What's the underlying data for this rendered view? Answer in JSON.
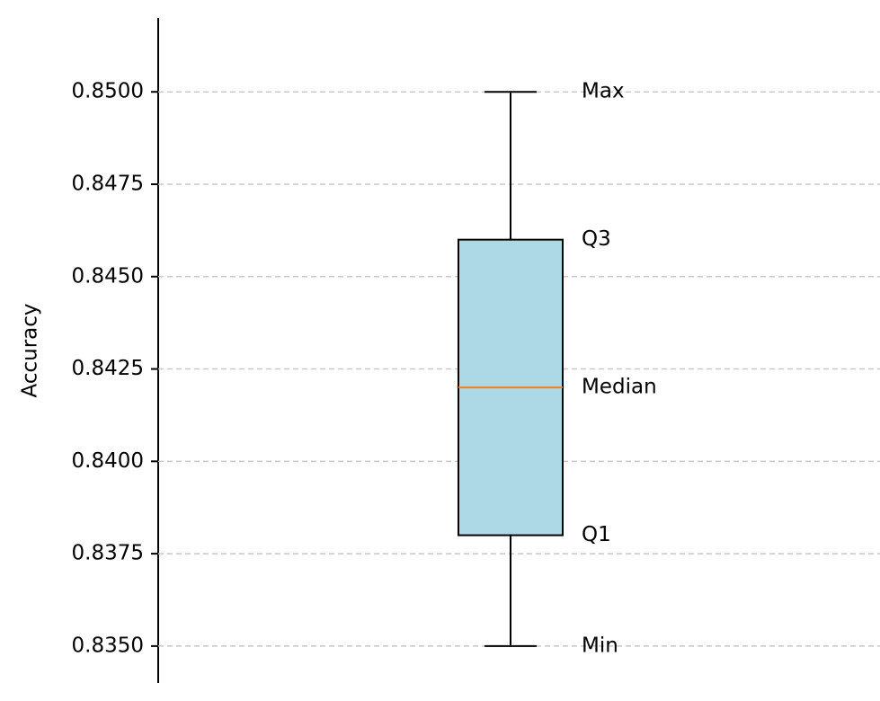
{
  "chart_data": {
    "type": "box",
    "y_label": "Accuracy",
    "box": {
      "min": 0.835,
      "q1": 0.838,
      "median": 0.842,
      "q3": 0.846,
      "max": 0.85
    },
    "stat_labels": {
      "max": "Max",
      "q3": "Q3",
      "median": "Median",
      "q1": "Q1",
      "min": "Min"
    },
    "color": "#add8e6",
    "median_color": "#ff7f0e",
    "ylim": [
      0.834,
      0.852
    ],
    "yticks": [
      {
        "value": 0.835,
        "label": "0.8350"
      },
      {
        "value": 0.8375,
        "label": "0.8375"
      },
      {
        "value": 0.84,
        "label": "0.8400"
      },
      {
        "value": 0.8425,
        "label": "0.8425"
      },
      {
        "value": 0.845,
        "label": "0.8450"
      },
      {
        "value": 0.8475,
        "label": "0.8475"
      },
      {
        "value": 0.85,
        "label": "0.8500"
      }
    ],
    "grid": true
  }
}
